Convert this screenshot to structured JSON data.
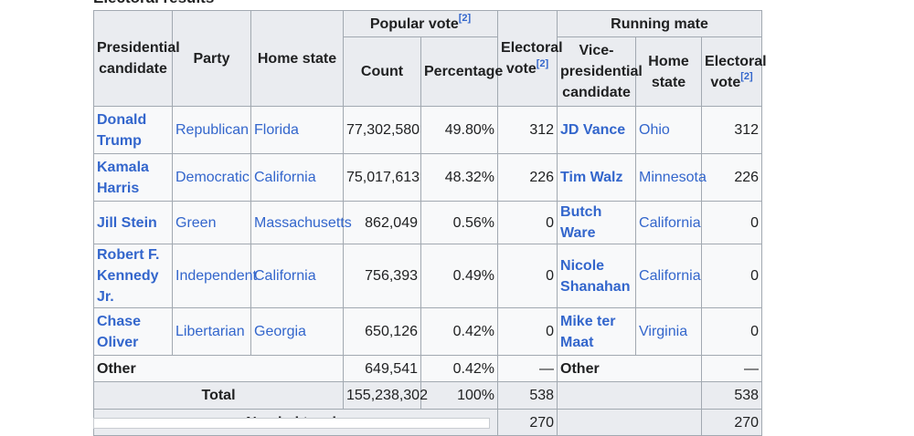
{
  "caption": "Electoral results",
  "headers": {
    "presidential_candidate": "Presidential candidate",
    "party": "Party",
    "home_state": "Home state",
    "popular_vote": "Popular vote",
    "count": "Count",
    "percentage": "Percentage",
    "electoral_vote": "Electoral vote",
    "running_mate": "Running mate",
    "vp_candidate": "Vice-presidential candidate",
    "rm_home_state": "Home state",
    "rm_electoral_vote": "Electoral vote",
    "ref": "[2]"
  },
  "rows": [
    {
      "candidate": "Donald Trump",
      "party": "Republican",
      "state": "Florida",
      "count": "77,302,580",
      "pct": "49.80%",
      "ev": "312",
      "vp": "JD Vance",
      "vp_state": "Ohio",
      "vp_ev": "312"
    },
    {
      "candidate": "Kamala Harris",
      "party": "Democratic",
      "state": "California",
      "count": "75,017,613",
      "pct": "48.32%",
      "ev": "226",
      "vp": "Tim Walz",
      "vp_state": "Minnesota",
      "vp_ev": "226"
    },
    {
      "candidate": "Jill Stein",
      "party": "Green",
      "state": "Massachusetts",
      "count": "862,049",
      "pct": "0.56%",
      "ev": "0",
      "vp": "Butch Ware",
      "vp_state": "California",
      "vp_ev": "0"
    },
    {
      "candidate": "Robert F. Kennedy Jr.",
      "party": "Independent",
      "state": "California",
      "count": "756,393",
      "pct": "0.49%",
      "ev": "0",
      "vp": "Nicole Shanahan",
      "vp_state": "California",
      "vp_ev": "0"
    },
    {
      "candidate": "Chase Oliver",
      "party": "Libertarian",
      "state": "Georgia",
      "count": "650,126",
      "pct": "0.42%",
      "ev": "0",
      "vp": "Mike ter Maat",
      "vp_state": "Virginia",
      "vp_ev": "0"
    }
  ],
  "other": {
    "candidate": "Other",
    "count": "649,541",
    "pct": "0.42%",
    "ev": "—",
    "vp": "Other",
    "vp_ev": "—"
  },
  "total": {
    "label": "Total",
    "count": "155,238,302",
    "pct": "100%",
    "ev": "538",
    "vp_ev": "538"
  },
  "needed": {
    "label": "Needed to win",
    "ev": "270",
    "vp_ev": "270"
  }
}
